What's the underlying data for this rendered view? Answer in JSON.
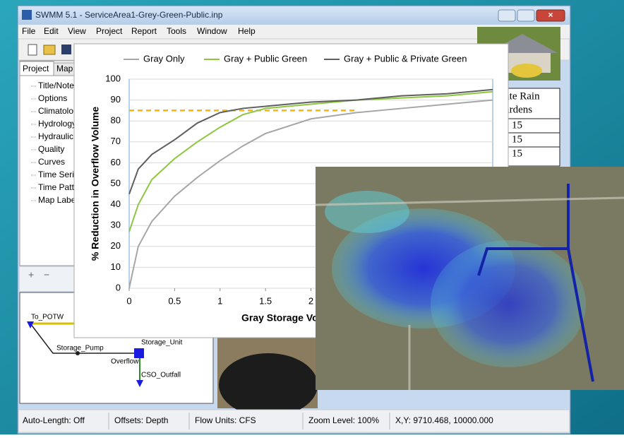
{
  "window": {
    "title": "SWMM 5.1 - ServiceArea1-Grey-Green-Public.inp",
    "menu": [
      "File",
      "Edit",
      "View",
      "Project",
      "Report",
      "Tools",
      "Window",
      "Help"
    ],
    "tabs": [
      "Project",
      "Map"
    ],
    "tree": [
      "Title/Note",
      "Options",
      "Climatolo",
      "Hydrology",
      "Hydraulic",
      "Quality",
      "Curves",
      "Time Seri",
      "Time Patt",
      "Map Labe"
    ],
    "diagram": {
      "labels": [
        "To_POTW",
        "Storage_Pump",
        "Storage_Unit",
        "Overflow",
        "CSO_Outfall"
      ]
    },
    "table": {
      "header": [
        "ate Rain",
        "ardens"
      ],
      "rows": [
        "15",
        "15",
        "15"
      ]
    },
    "status": [
      "Auto-Length: Off",
      "Offsets: Depth",
      "Flow Units: CFS",
      "Zoom Level: 100%",
      "X,Y: 9710.468, 10000.000"
    ]
  },
  "chart_data": {
    "type": "line",
    "xlabel": "Gray Storage Volume",
    "ylabel": "% Reduction in Overflow Volume",
    "x": [
      0,
      0.1,
      0.25,
      0.5,
      0.75,
      1,
      1.25,
      1.5,
      2,
      2.5,
      3,
      3.5,
      4
    ],
    "series": [
      {
        "name": "Gray Only",
        "color": "#a6a6a6",
        "values": [
          0,
          20,
          32,
          44,
          53,
          61,
          68,
          74,
          81,
          84,
          86,
          88,
          90
        ]
      },
      {
        "name": "Gray + Public Green",
        "color": "#8dc63f",
        "values": [
          27,
          40,
          52,
          62,
          70,
          77,
          83,
          86,
          88,
          90,
          91,
          92,
          94
        ]
      },
      {
        "name": "Gray + Public & Private Green",
        "color": "#5f5f5f",
        "values": [
          45,
          57,
          64,
          71,
          79,
          84,
          86,
          87,
          89,
          90,
          92,
          93,
          95
        ]
      }
    ],
    "reference_line": {
      "y": 85,
      "x_range": [
        0,
        2.5
      ],
      "color": "#f5b800"
    },
    "xlim": [
      0,
      4
    ],
    "xticks": [
      0,
      0.5,
      1,
      1.5,
      2
    ],
    "ylim": [
      0,
      100
    ],
    "yticks": [
      0,
      10,
      20,
      30,
      40,
      50,
      60,
      70,
      80,
      90,
      100
    ],
    "grid": true
  }
}
